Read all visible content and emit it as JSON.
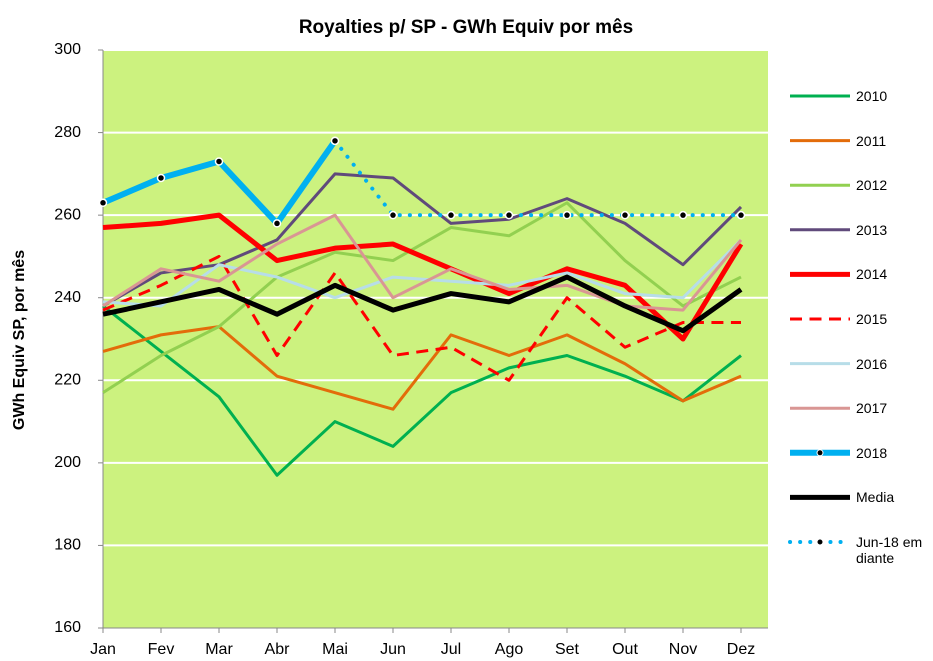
{
  "chart_data": {
    "type": "line",
    "title": "Royalties p/ SP - GWh Equiv por mês",
    "y_label": "GWh Equiv SP, por mês",
    "categories": [
      "Jan",
      "Fev",
      "Mar",
      "Abr",
      "Mai",
      "Jun",
      "Jul",
      "Ago",
      "Set",
      "Out",
      "Nov",
      "Dez"
    ],
    "ylim": [
      160,
      300
    ],
    "yticks": [
      160,
      180,
      200,
      220,
      240,
      260,
      280,
      300
    ],
    "grid": true,
    "background": "#ccf27f",
    "legend": "right",
    "series": [
      {
        "name": "2010",
        "color": "#00b050",
        "line_width": 3,
        "values": [
          238,
          227,
          216,
          197,
          210,
          204,
          217,
          223,
          226,
          221,
          215,
          226
        ]
      },
      {
        "name": "2011",
        "color": "#e36c0a",
        "line_width": 3,
        "values": [
          227,
          231,
          233,
          221,
          217,
          213,
          231,
          226,
          231,
          224,
          215,
          221
        ]
      },
      {
        "name": "2012",
        "color": "#92d050",
        "line_width": 3,
        "values": [
          217,
          226,
          233,
          245,
          251,
          249,
          257,
          255,
          263,
          249,
          238,
          245
        ]
      },
      {
        "name": "2013",
        "color": "#604a7b",
        "line_width": 3,
        "values": [
          238,
          246,
          248,
          254,
          270,
          269,
          258,
          259,
          264,
          258,
          248,
          262
        ]
      },
      {
        "name": "2014",
        "color": "#ff0000",
        "line_width": 5,
        "values": [
          257,
          258,
          260,
          249,
          252,
          253,
          247,
          241,
          247,
          243,
          230,
          253
        ]
      },
      {
        "name": "2015",
        "color": "#ff0000",
        "line_width": 3,
        "dash": "dashed",
        "values": [
          237,
          243,
          250,
          226,
          246,
          226,
          228,
          220,
          240,
          228,
          234,
          234
        ]
      },
      {
        "name": "2016",
        "color": "#b7dde8",
        "line_width": 3,
        "values": [
          239,
          238,
          248,
          245,
          240,
          245,
          244,
          243,
          246,
          241,
          240,
          254
        ]
      },
      {
        "name": "2017",
        "color": "#d99694",
        "line_width": 3,
        "values": [
          238,
          247,
          244,
          253,
          260,
          240,
          247,
          242,
          243,
          238,
          237,
          254
        ]
      },
      {
        "name": "2018",
        "color": "#00b0f0",
        "line_width": 6,
        "markers": true,
        "values": [
          263,
          269,
          273,
          258,
          278,
          null,
          null,
          null,
          null,
          null,
          null,
          null
        ]
      },
      {
        "name": "Media",
        "color": "#000000",
        "line_width": 5,
        "values": [
          236,
          239,
          242,
          236,
          243,
          237,
          241,
          239,
          245,
          238,
          232,
          242
        ]
      },
      {
        "name": "Jun-18 em diante",
        "color": "#00b0f0",
        "line_width": 4,
        "dash": "dotted",
        "markers": true,
        "values": [
          null,
          null,
          null,
          null,
          278,
          260,
          260,
          260,
          260,
          260,
          260,
          260
        ]
      }
    ]
  }
}
